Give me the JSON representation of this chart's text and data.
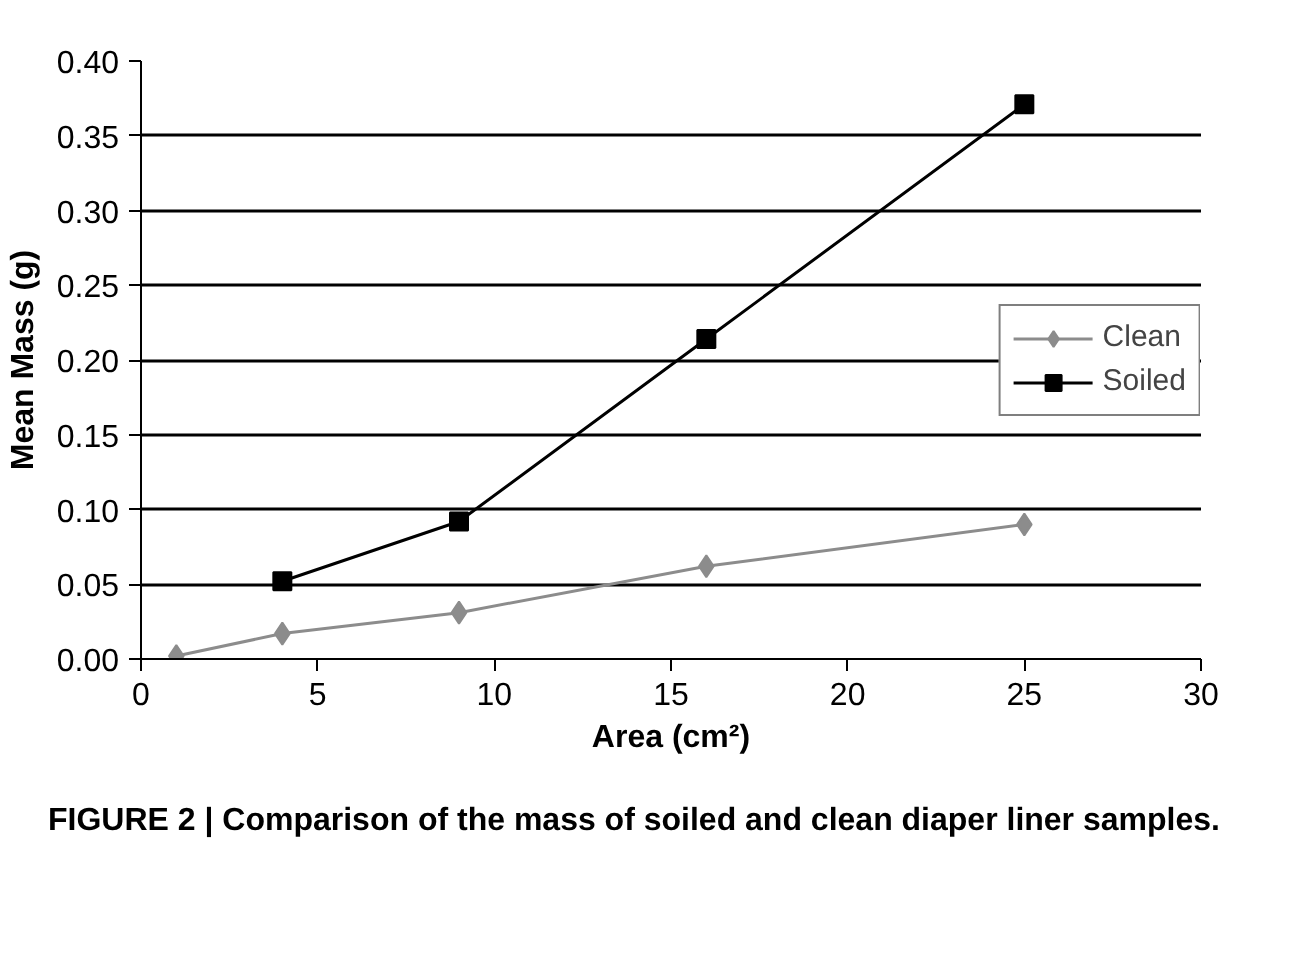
{
  "chart_data": {
    "type": "line",
    "xlabel": "Area (cm²)",
    "ylabel": "Mean Mass (g)",
    "xlim": [
      0,
      30
    ],
    "xticks": [
      0,
      5,
      10,
      15,
      20,
      25,
      30
    ],
    "ylim": [
      0,
      0.4
    ],
    "yticks": [
      {
        "value": 0,
        "label": "0.00"
      },
      {
        "value": 0.05,
        "label": "0.05"
      },
      {
        "value": 0.1,
        "label": "0.10"
      },
      {
        "value": 0.15,
        "label": "0.15"
      },
      {
        "value": 0.2,
        "label": "0.20"
      },
      {
        "value": 0.25,
        "label": "0.25"
      },
      {
        "value": 0.3,
        "label": "0.30"
      },
      {
        "value": 0.35,
        "label": "0.35"
      },
      {
        "value": 0.4,
        "label": "0.40"
      }
    ],
    "grid": "y",
    "legend": "right",
    "series": [
      {
        "name": "Clean",
        "color": "#8c8c8c",
        "marker": "diamond",
        "x": [
          1,
          4,
          9,
          16,
          25
        ],
        "values": [
          0.002,
          0.017,
          0.031,
          0.062,
          0.09
        ]
      },
      {
        "name": "Soiled",
        "color": "#000000",
        "marker": "square",
        "x": [
          4,
          9,
          16,
          25
        ],
        "values": [
          0.052,
          0.092,
          0.214,
          0.371
        ]
      }
    ],
    "annotations": [
      "FIGURE 2 | Comparison of the mass of soiled and clean diaper liner samples."
    ]
  }
}
